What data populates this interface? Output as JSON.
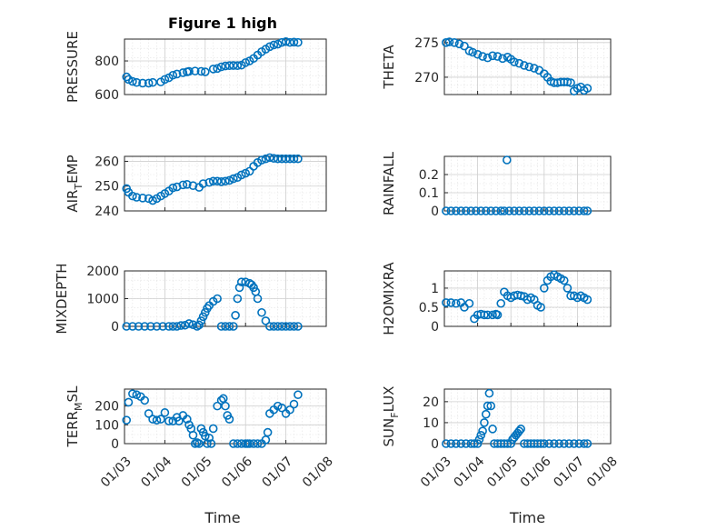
{
  "figure_title": "Figure 1 high",
  "chart_data": [
    {
      "type": "scatter",
      "title": "Figure 1 high",
      "ylabel": "PRESSURE",
      "xlabel": "",
      "x_tick_labels": [],
      "y_ticks": [
        600,
        800
      ],
      "ylim": [
        600,
        930
      ],
      "xlim": [
        0,
        5
      ],
      "grid": true,
      "color": "#0072BD",
      "x": [
        0.05,
        0.1,
        0.2,
        0.3,
        0.45,
        0.6,
        0.7,
        0.9,
        1.0,
        1.1,
        1.2,
        1.3,
        1.45,
        1.55,
        1.6,
        1.75,
        1.9,
        2.0,
        2.2,
        2.3,
        2.4,
        2.5,
        2.6,
        2.7,
        2.8,
        2.9,
        3.0,
        3.1,
        3.2,
        3.3,
        3.4,
        3.5,
        3.6,
        3.7,
        3.8,
        3.9,
        4.0,
        4.1,
        4.2,
        4.3
      ],
      "values": [
        705,
        690,
        678,
        672,
        668,
        668,
        672,
        675,
        690,
        700,
        715,
        722,
        730,
        735,
        738,
        740,
        738,
        735,
        752,
        755,
        765,
        770,
        772,
        773,
        772,
        775,
        790,
        800,
        815,
        835,
        855,
        870,
        885,
        895,
        900,
        910,
        915,
        910,
        912,
        910
      ]
    },
    {
      "type": "scatter",
      "title": "",
      "ylabel": "THETA",
      "xlabel": "",
      "x_tick_labels": [],
      "y_ticks": [
        270,
        275
      ],
      "ylim": [
        267.5,
        275.5
      ],
      "xlim": [
        0,
        5
      ],
      "grid": true,
      "color": "#0072BD",
      "x": [
        0.05,
        0.15,
        0.3,
        0.45,
        0.6,
        0.75,
        0.85,
        1.0,
        1.15,
        1.3,
        1.45,
        1.6,
        1.75,
        1.9,
        2.0,
        2.1,
        2.25,
        2.4,
        2.55,
        2.7,
        2.85,
        3.0,
        3.1,
        3.2,
        3.3,
        3.4,
        3.5,
        3.6,
        3.7,
        3.8,
        3.9,
        4.0,
        4.1,
        4.2,
        4.3
      ],
      "values": [
        275,
        275.1,
        275,
        274.8,
        274.5,
        273.8,
        273.6,
        273.3,
        273.0,
        272.8,
        273.1,
        273.0,
        272.7,
        272.9,
        272.6,
        272.2,
        272.0,
        271.7,
        271.5,
        271.3,
        271.0,
        270.5,
        270.0,
        269.4,
        269.2,
        269.2,
        269.3,
        269.3,
        269.3,
        269.2,
        268.0,
        268.4,
        268.6,
        268.1,
        268.4
      ]
    },
    {
      "type": "scatter",
      "title": "",
      "ylabel": "AIR_TEMP",
      "ylabel_main": "AIR",
      "ylabel_sub": "T",
      "ylabel_rest": "EMP",
      "xlabel": "",
      "x_tick_labels": [],
      "y_ticks": [
        240,
        250,
        260
      ],
      "ylim": [
        240,
        262
      ],
      "xlim": [
        0,
        5
      ],
      "grid": true,
      "color": "#0072BD",
      "x": [
        0.05,
        0.1,
        0.2,
        0.3,
        0.45,
        0.6,
        0.7,
        0.8,
        0.9,
        1.0,
        1.1,
        1.2,
        1.3,
        1.45,
        1.55,
        1.7,
        1.85,
        1.95,
        2.1,
        2.2,
        2.3,
        2.4,
        2.5,
        2.6,
        2.7,
        2.8,
        2.9,
        3.0,
        3.1,
        3.2,
        3.3,
        3.4,
        3.5,
        3.6,
        3.7,
        3.8,
        3.9,
        4.0,
        4.1,
        4.2,
        4.3
      ],
      "values": [
        249,
        247.5,
        246,
        245.5,
        245.2,
        245,
        244.2,
        245,
        246,
        247,
        248,
        249.3,
        249.7,
        250.5,
        250.7,
        250.2,
        249.5,
        251,
        251.5,
        252,
        252,
        251.8,
        252,
        252.3,
        253,
        253.5,
        254.5,
        255.2,
        256,
        258,
        259.5,
        260.5,
        261,
        261.5,
        261.2,
        261,
        261,
        261,
        261,
        261,
        261
      ]
    },
    {
      "type": "scatter",
      "title": "",
      "ylabel": "RAINFALL",
      "xlabel": "",
      "x_tick_labels": [],
      "y_ticks": [
        0,
        0.1,
        0.2
      ],
      "ylim": [
        0,
        0.3
      ],
      "xlim": [
        0,
        5
      ],
      "grid": true,
      "color": "#0072BD",
      "x": [
        0.05,
        0.2,
        0.35,
        0.5,
        0.65,
        0.8,
        0.95,
        1.1,
        1.25,
        1.4,
        1.55,
        1.7,
        1.8,
        1.95,
        2.1,
        2.25,
        2.4,
        2.55,
        2.7,
        2.85,
        3.0,
        3.15,
        3.3,
        3.45,
        3.6,
        3.75,
        3.9,
        4.05,
        4.2,
        4.3,
        1.88
      ],
      "values": [
        0,
        0,
        0,
        0,
        0,
        0,
        0,
        0,
        0,
        0,
        0,
        0,
        0,
        0,
        0,
        0,
        0,
        0,
        0,
        0,
        0,
        0,
        0,
        0,
        0,
        0,
        0,
        0,
        0,
        0,
        0.28
      ]
    },
    {
      "type": "scatter",
      "title": "",
      "ylabel": "MIXDEPTH",
      "xlabel": "",
      "x_tick_labels": [],
      "y_ticks": [
        0,
        1000,
        2000
      ],
      "ylim": [
        0,
        2000
      ],
      "xlim": [
        0,
        5
      ],
      "grid": true,
      "color": "#0072BD",
      "x": [
        0.05,
        0.2,
        0.35,
        0.5,
        0.65,
        0.8,
        0.95,
        1.1,
        1.2,
        1.3,
        1.4,
        1.5,
        1.6,
        1.7,
        1.8,
        1.85,
        1.9,
        1.95,
        2.0,
        2.05,
        2.1,
        2.2,
        2.3,
        2.4,
        2.5,
        2.6,
        2.7,
        2.75,
        2.8,
        2.85,
        2.9,
        3.0,
        3.1,
        3.15,
        3.2,
        3.25,
        3.3,
        3.4,
        3.5,
        3.6,
        3.7,
        3.8,
        3.9,
        4.0,
        4.1,
        4.2,
        4.3
      ],
      "values": [
        0,
        0,
        0,
        0,
        0,
        0,
        0,
        0,
        0,
        0,
        30,
        40,
        100,
        60,
        0,
        50,
        200,
        350,
        500,
        650,
        750,
        900,
        1000,
        0,
        0,
        0,
        0,
        400,
        1000,
        1400,
        1600,
        1600,
        1550,
        1500,
        1400,
        1250,
        1000,
        500,
        200,
        0,
        0,
        0,
        0,
        0,
        0,
        0,
        0
      ]
    },
    {
      "type": "scatter",
      "title": "",
      "ylabel": "H2OMIXRA",
      "xlabel": "",
      "x_tick_labels": [],
      "y_ticks": [
        0,
        0.5,
        1
      ],
      "ylim": [
        0,
        1.45
      ],
      "xlim": [
        0,
        5
      ],
      "grid": true,
      "color": "#0072BD",
      "x": [
        0.05,
        0.2,
        0.35,
        0.5,
        0.6,
        0.75,
        0.9,
        1.0,
        1.1,
        1.2,
        1.3,
        1.45,
        1.55,
        1.6,
        1.7,
        1.8,
        1.9,
        2.0,
        2.1,
        2.2,
        2.3,
        2.4,
        2.5,
        2.6,
        2.7,
        2.8,
        2.9,
        3.0,
        3.1,
        3.2,
        3.3,
        3.4,
        3.5,
        3.6,
        3.7,
        3.8,
        3.9,
        4.0,
        4.1,
        4.2,
        4.3
      ],
      "values": [
        0.62,
        0.62,
        0.6,
        0.62,
        0.5,
        0.6,
        0.2,
        0.3,
        0.32,
        0.3,
        0.3,
        0.3,
        0.32,
        0.3,
        0.6,
        0.9,
        0.8,
        0.75,
        0.8,
        0.82,
        0.8,
        0.78,
        0.7,
        0.75,
        0.7,
        0.55,
        0.5,
        1.0,
        1.2,
        1.3,
        1.35,
        1.3,
        1.25,
        1.2,
        1.0,
        0.8,
        0.8,
        0.75,
        0.8,
        0.75,
        0.7
      ]
    },
    {
      "type": "scatter",
      "title": "",
      "ylabel": "TERR_MSL",
      "ylabel_main": "TERR",
      "ylabel_sub": "M",
      "ylabel_rest": "SL",
      "xlabel": "Time",
      "x_tick_labels": [
        "01/03",
        "01/04",
        "01/05",
        "01/06",
        "01/07",
        "01/08"
      ],
      "y_ticks": [
        0,
        100,
        200
      ],
      "ylim": [
        0,
        290
      ],
      "xlim": [
        0,
        5
      ],
      "grid": true,
      "color": "#0072BD",
      "x": [
        0.05,
        0.1,
        0.2,
        0.3,
        0.4,
        0.5,
        0.6,
        0.7,
        0.8,
        0.9,
        1.0,
        1.1,
        1.2,
        1.3,
        1.35,
        1.45,
        1.55,
        1.6,
        1.65,
        1.7,
        1.75,
        1.8,
        1.85,
        1.9,
        1.95,
        2.0,
        2.05,
        2.1,
        2.15,
        2.2,
        2.3,
        2.4,
        2.45,
        2.5,
        2.55,
        2.6,
        2.7,
        2.8,
        2.9,
        3.0,
        3.05,
        3.1,
        3.2,
        3.3,
        3.4,
        3.5,
        3.55,
        3.6,
        3.7,
        3.8,
        3.9,
        4.0,
        4.1,
        4.2,
        4.3
      ],
      "values": [
        125,
        220,
        265,
        260,
        250,
        230,
        160,
        130,
        125,
        130,
        165,
        120,
        120,
        140,
        120,
        150,
        130,
        100,
        80,
        45,
        0,
        5,
        0,
        80,
        60,
        40,
        0,
        30,
        0,
        80,
        200,
        230,
        240,
        200,
        150,
        130,
        0,
        0,
        0,
        0,
        0,
        0,
        0,
        0,
        0,
        20,
        60,
        160,
        180,
        200,
        190,
        160,
        180,
        210,
        260
      ]
    },
    {
      "type": "scatter",
      "title": "",
      "ylabel": "SUN_FLUX",
      "ylabel_main": "SUN",
      "ylabel_sub": "F",
      "ylabel_rest": "LUX",
      "xlabel": "Time",
      "x_tick_labels": [
        "01/03",
        "01/04",
        "01/05",
        "01/06",
        "01/07",
        "01/08"
      ],
      "y_ticks": [
        0,
        10,
        20
      ],
      "ylim": [
        0,
        26
      ],
      "xlim": [
        0,
        5
      ],
      "grid": true,
      "color": "#0072BD",
      "x": [
        0.05,
        0.2,
        0.35,
        0.5,
        0.65,
        0.8,
        0.9,
        1.0,
        1.05,
        1.1,
        1.15,
        1.2,
        1.25,
        1.3,
        1.35,
        1.4,
        1.45,
        1.5,
        1.6,
        1.7,
        1.8,
        1.9,
        2.0,
        2.05,
        2.1,
        2.15,
        2.2,
        2.25,
        2.3,
        2.4,
        2.5,
        2.6,
        2.7,
        2.8,
        2.9,
        3.0,
        3.15,
        3.3,
        3.45,
        3.6,
        3.75,
        3.9,
        4.05,
        4.2,
        4.3
      ],
      "values": [
        0,
        0,
        0,
        0,
        0,
        0,
        0,
        0,
        2,
        4,
        6,
        10,
        14,
        18,
        24,
        18,
        7,
        0,
        0,
        0,
        0,
        0,
        0,
        2,
        3,
        4,
        5,
        6,
        7,
        0,
        0,
        0,
        0,
        0,
        0,
        0,
        0,
        0,
        0,
        0,
        0,
        0,
        0,
        0,
        0
      ]
    }
  ]
}
